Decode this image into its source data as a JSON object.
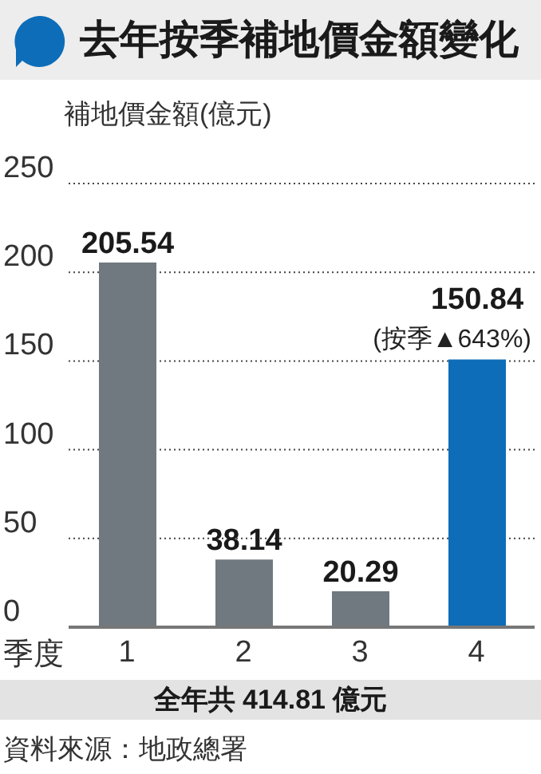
{
  "chart_data": {
    "type": "bar",
    "title": "去年按季補地價金額變化",
    "ylabel": "補地價金額(億元)",
    "xlabel": "季度",
    "categories": [
      "1",
      "2",
      "3",
      "4"
    ],
    "values": [
      205.54,
      38.14,
      20.29,
      150.84
    ],
    "colors": [
      "#6f797f",
      "#6f797f",
      "#6f797f",
      "#0e6db8"
    ],
    "ylim": [
      0,
      250
    ],
    "yticks": [
      0,
      50,
      100,
      150,
      200,
      250
    ],
    "grid": "y",
    "data_labels": true,
    "annotations": [
      {
        "text": "(按季▲643%)",
        "x": "4",
        "y": 150.84
      },
      "全年共 414.81 億元",
      "資料來源：地政總署"
    ]
  }
}
